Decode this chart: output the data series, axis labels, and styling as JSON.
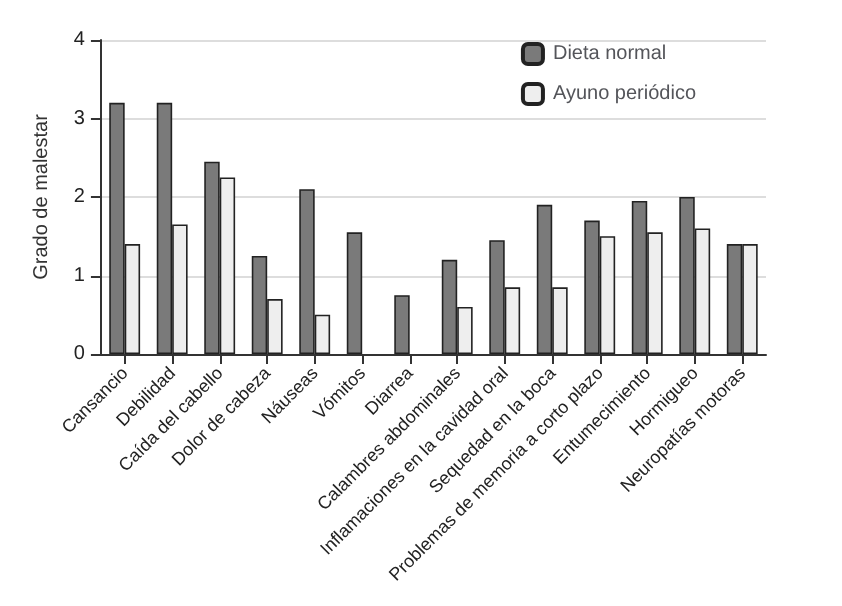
{
  "chart_data": {
    "type": "bar",
    "ylabel": "Grado de malestar",
    "categories": [
      "Cansancio",
      "Debilidad",
      "Caída del cabello",
      "Dolor de cabeza",
      "Náuseas",
      "Vómitos",
      "Diarrea",
      "Calambres abdominales",
      "Inflamaciones en la cavidad oral",
      "Sequedad en la boca",
      "Problemas de memoria a corto plazo",
      "Entumecimiento",
      "Hormigueo",
      "Neuropatías motoras"
    ],
    "series": [
      {
        "name": "Dieta normal",
        "color": "#7a7a7a",
        "values": [
          3.2,
          3.2,
          2.45,
          1.25,
          2.1,
          1.55,
          0.75,
          1.2,
          1.45,
          1.9,
          1.7,
          1.95,
          2.0,
          1.4
        ]
      },
      {
        "name": "Ayuno periódico",
        "color": "#eeeeee",
        "values": [
          1.4,
          1.65,
          2.25,
          0.7,
          0.5,
          0,
          0,
          0.6,
          0.85,
          0.85,
          1.5,
          1.55,
          1.6,
          1.4
        ]
      }
    ],
    "ylim": [
      0,
      4
    ],
    "yticks": [
      0,
      1,
      2,
      3,
      4
    ],
    "grid": "y",
    "legend": "top right"
  }
}
